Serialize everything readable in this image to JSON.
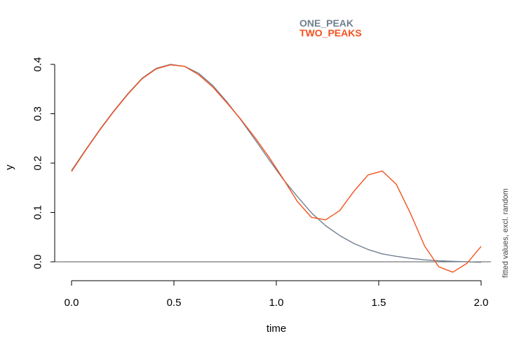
{
  "chart_data": {
    "type": "line",
    "xlabel": "time",
    "ylabel": "y",
    "side_note": "fitted values, excl. random",
    "xlim": [
      0,
      2.0
    ],
    "ylim": [
      -0.02,
      0.4
    ],
    "x_ticks": [
      0,
      0.5,
      1.0,
      1.5,
      2.0
    ],
    "x_tick_labels": [
      "0.0",
      "0.5",
      "1.0",
      "1.5",
      "2.0"
    ],
    "y_ticks": [
      0,
      0.1,
      0.2,
      0.3,
      0.4
    ],
    "y_tick_labels": [
      "0.0",
      "0.1",
      "0.2",
      "0.3",
      "0.4"
    ],
    "reference_line": 0,
    "grid": false,
    "legend_position": "top",
    "series": [
      {
        "name": "ONE_PEAK",
        "color": "#708090",
        "x": [
          0,
          0.069,
          0.138,
          0.207,
          0.276,
          0.345,
          0.414,
          0.483,
          0.552,
          0.621,
          0.69,
          0.759,
          0.828,
          0.897,
          0.966,
          1.034,
          1.103,
          1.172,
          1.241,
          1.31,
          1.379,
          1.448,
          1.517,
          1.586,
          1.655,
          1.724,
          1.793,
          1.862,
          1.931,
          2.0
        ],
        "values": [
          0.185,
          0.227,
          0.268,
          0.306,
          0.341,
          0.372,
          0.392,
          0.4,
          0.396,
          0.382,
          0.357,
          0.324,
          0.287,
          0.247,
          0.206,
          0.167,
          0.132,
          0.099,
          0.073,
          0.053,
          0.037,
          0.025,
          0.016,
          0.011,
          0.007,
          0.004,
          0.002,
          0.001,
          0.0,
          -0.001
        ]
      },
      {
        "name": "TWO_PEAKS",
        "color": "#f4511e",
        "x": [
          0,
          0.069,
          0.138,
          0.207,
          0.276,
          0.345,
          0.414,
          0.483,
          0.552,
          0.621,
          0.69,
          0.759,
          0.828,
          0.897,
          0.966,
          1.034,
          1.103,
          1.172,
          1.241,
          1.31,
          1.379,
          1.448,
          1.517,
          1.586,
          1.655,
          1.724,
          1.793,
          1.862,
          1.931,
          2.0
        ],
        "values": [
          0.183,
          0.226,
          0.267,
          0.305,
          0.34,
          0.371,
          0.391,
          0.399,
          0.396,
          0.379,
          0.354,
          0.322,
          0.288,
          0.251,
          0.211,
          0.168,
          0.122,
          0.09,
          0.085,
          0.104,
          0.143,
          0.176,
          0.184,
          0.157,
          0.098,
          0.032,
          -0.01,
          -0.021,
          -0.003,
          0.031
        ]
      }
    ]
  }
}
